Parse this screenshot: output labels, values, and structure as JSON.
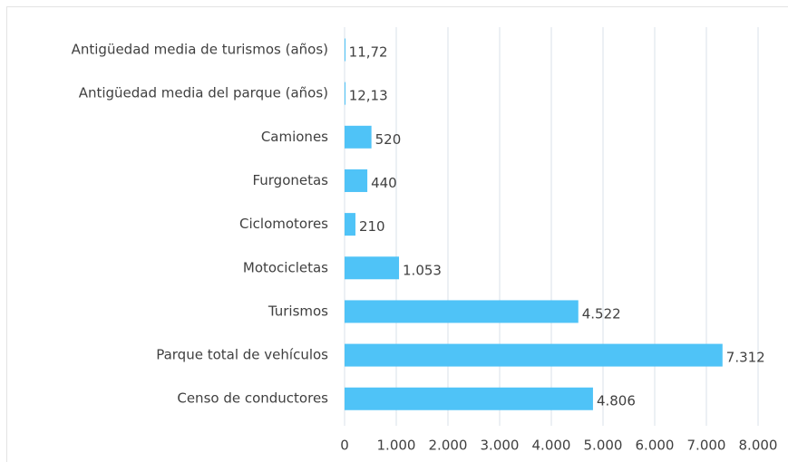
{
  "chart_data": {
    "type": "bar",
    "orientation": "horizontal",
    "categories": [
      "Antigüedad media de turismos (años)",
      "Antigüedad media del parque (años)",
      "Camiones",
      "Furgonetas",
      "Ciclomotores",
      "Motocicletas",
      "Turismos",
      "Parque total de vehículos",
      "Censo de conductores"
    ],
    "values": [
      11.72,
      12.13,
      520,
      440,
      210,
      1053,
      4522,
      7312,
      4806
    ],
    "value_labels": [
      "11,72",
      "12,13",
      "520",
      "440",
      "210",
      "1.053",
      "4.522",
      "7.312",
      "4.806"
    ],
    "color": "#4fc3f7",
    "xlim": [
      0,
      8000
    ],
    "xticks": [
      0,
      {
        "value": 1000,
        "label": "1.000"
      },
      {
        "value": 2000,
        "label": "2.000"
      },
      {
        "value": 3000,
        "label": "3.000"
      },
      {
        "value": 4000,
        "label": "4.000"
      },
      {
        "value": 5000,
        "label": "5.000"
      },
      {
        "value": 6000,
        "label": "6.000"
      },
      {
        "value": 7000,
        "label": "7.000"
      },
      {
        "value": 8000,
        "label": "8.000"
      }
    ],
    "grid": true
  }
}
